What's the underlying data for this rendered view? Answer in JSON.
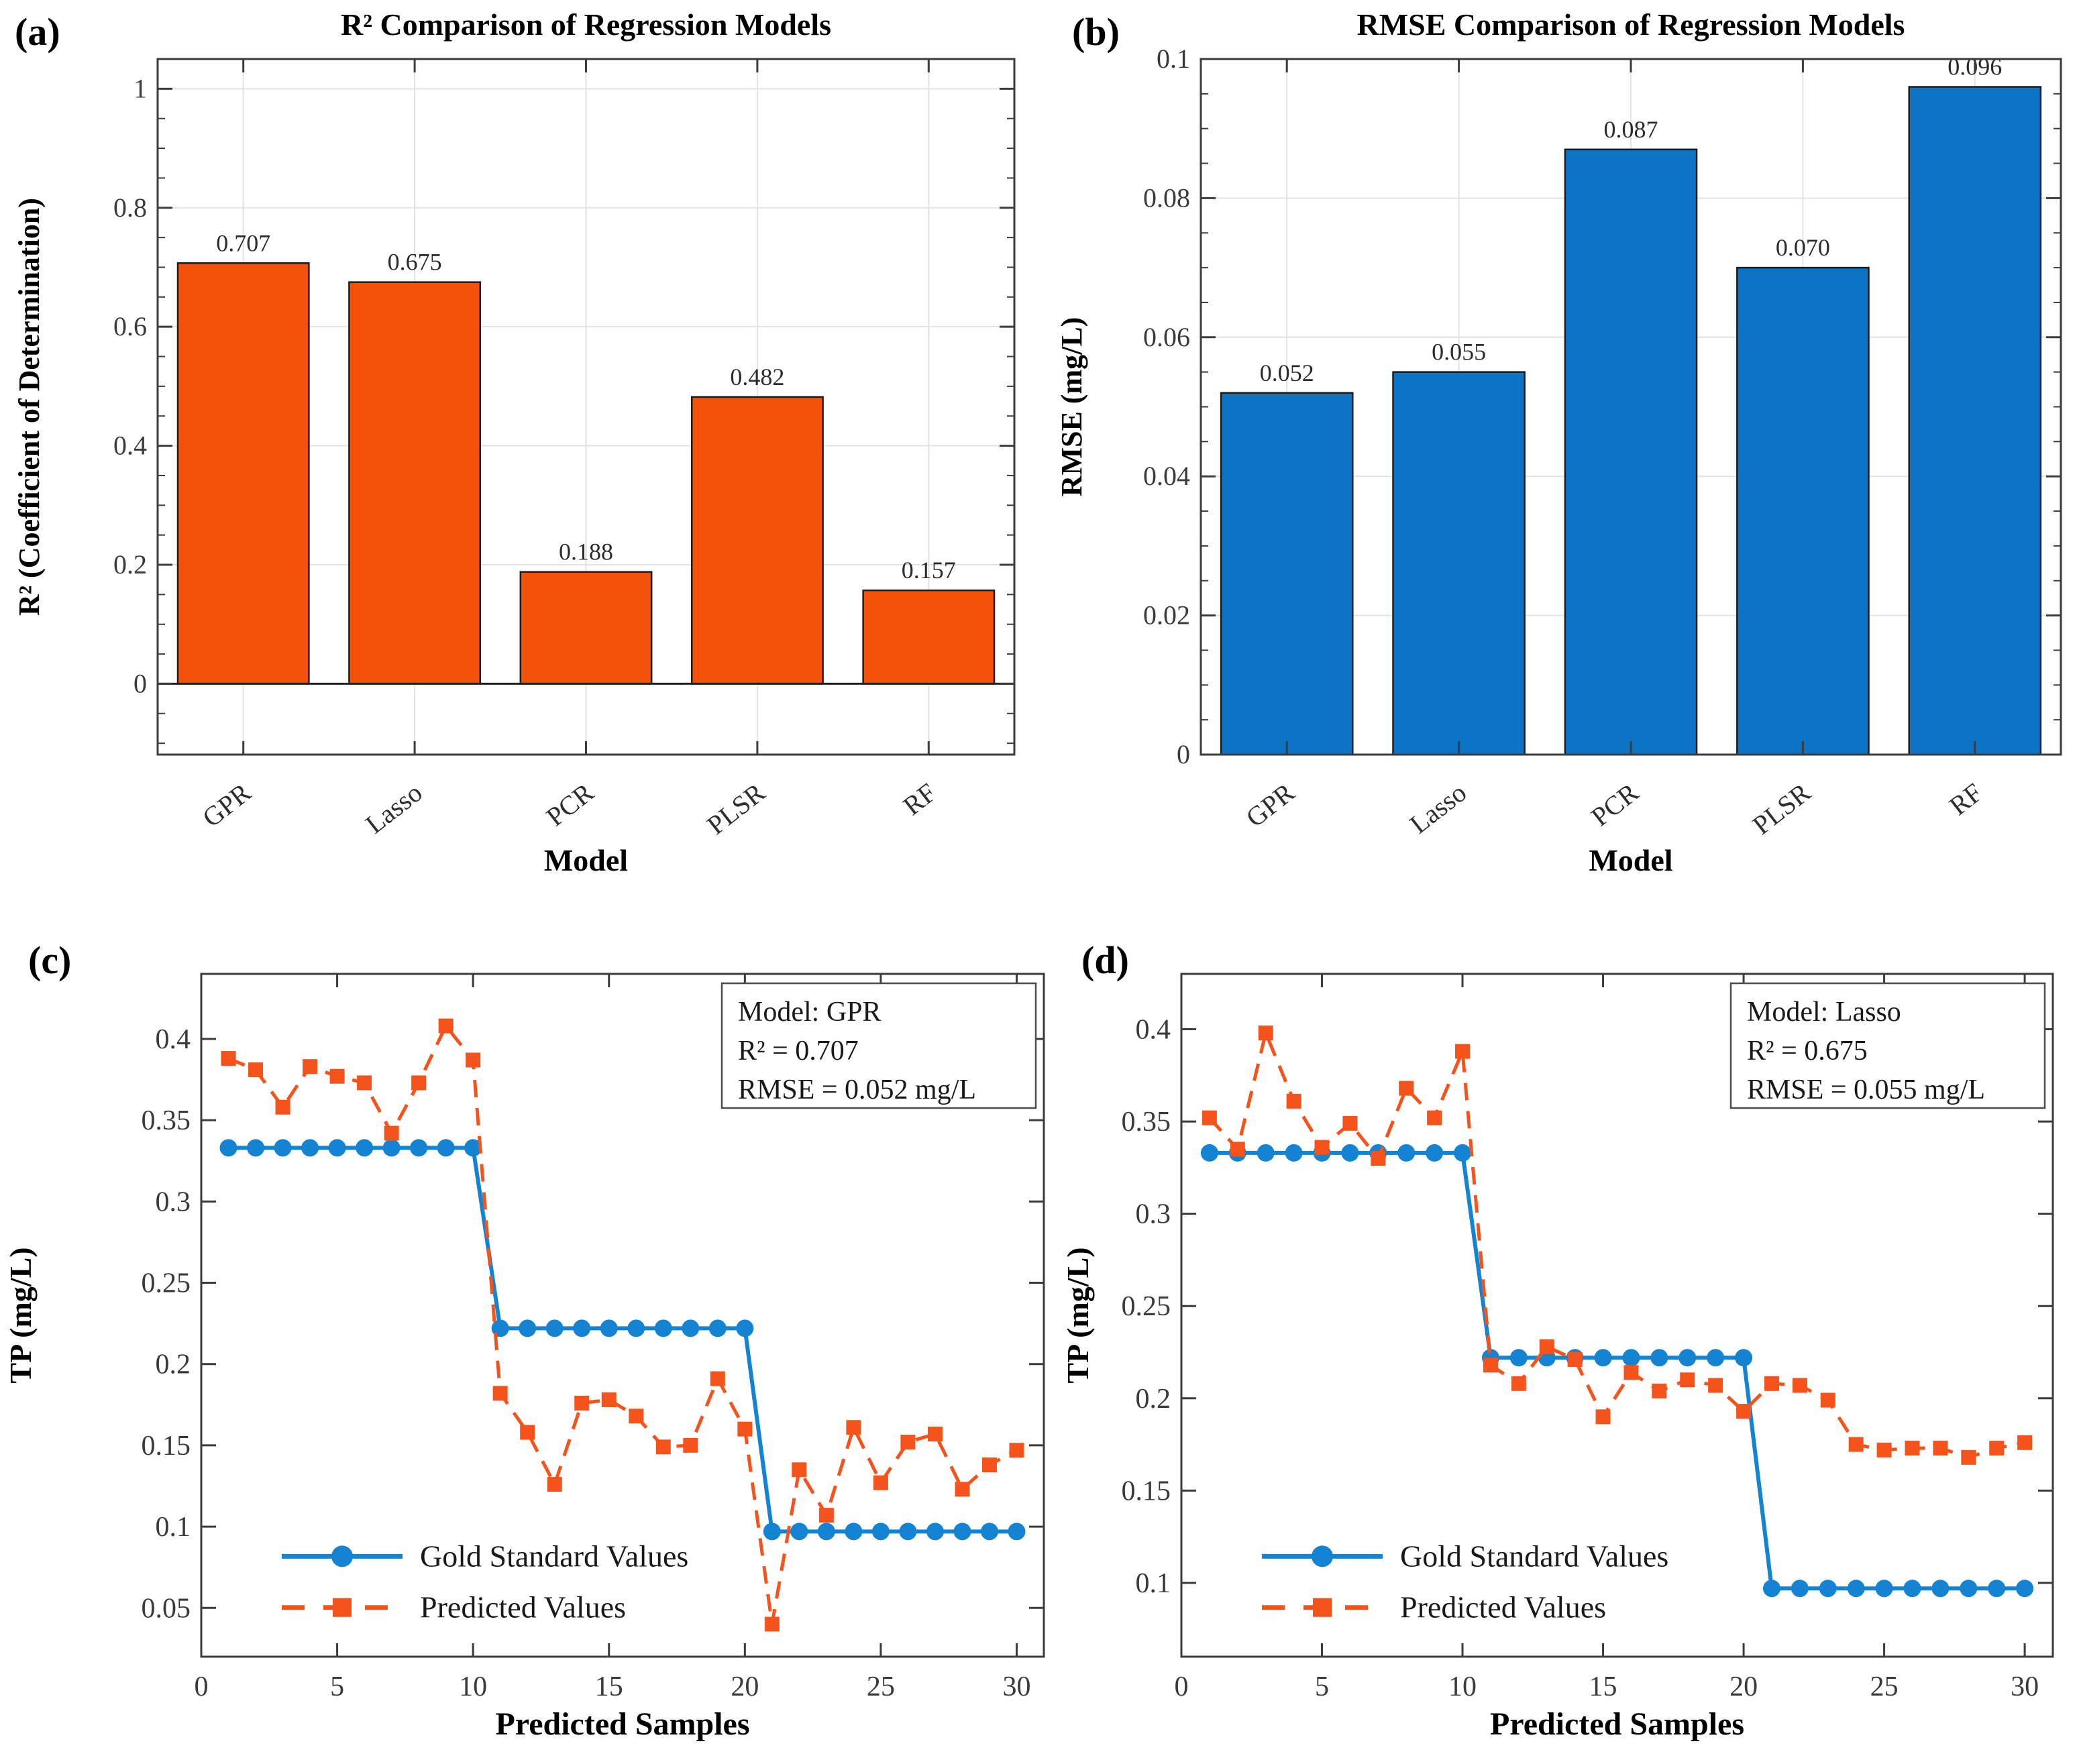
{
  "figure": {
    "panels": [
      {
        "tag": "(a)"
      },
      {
        "tag": "(b)"
      },
      {
        "tag": "(c)"
      },
      {
        "tag": "(d)"
      }
    ]
  },
  "colors": {
    "orange": "#f4520a",
    "blue_bar": "#0b74c4",
    "blue_line": "#1484d2",
    "orange_line": "#f4531c",
    "grid": "#e3e3e3",
    "spine": "#3c3c3c",
    "tick_text": "#3a3a3a",
    "label_text": "#000000",
    "value_label": "#2b2b2b"
  },
  "chart_data": [
    {
      "id": "a",
      "type": "bar",
      "title": "R² Comparison of Regression Models",
      "xlabel": "Model",
      "ylabel": "R² (Coefficient of Determination)",
      "categories": [
        "GPR",
        "Lasso",
        "PCR",
        "PLSR",
        "RF"
      ],
      "values": [
        0.707,
        0.675,
        0.188,
        0.482,
        0.157
      ],
      "value_labels": [
        "0.707",
        "0.675",
        "0.188",
        "0.482",
        "0.157"
      ],
      "bar_color": "#f4520a",
      "bar_edge": "#1c1c1c",
      "ylim": [
        -0.119,
        1.05
      ],
      "yticks": [
        0,
        0.2,
        0.4,
        0.6,
        0.8,
        1
      ],
      "minor_step": 0.05,
      "grid": true,
      "baseline_at_zero": true
    },
    {
      "id": "b",
      "type": "bar",
      "title": "RMSE Comparison of Regression Models",
      "xlabel": "Model",
      "ylabel": "RMSE (mg/L)",
      "categories": [
        "GPR",
        "Lasso",
        "PCR",
        "PLSR",
        "RF"
      ],
      "values": [
        0.052,
        0.055,
        0.087,
        0.07,
        0.096
      ],
      "value_labels": [
        "0.052",
        "0.055",
        "0.087",
        "0.070",
        "0.096"
      ],
      "bar_color": "#0b74c4",
      "bar_edge": "#1c1c1c",
      "ylim": [
        0,
        0.1
      ],
      "yticks": [
        0,
        0.02,
        0.04,
        0.06,
        0.08,
        0.1
      ],
      "minor_step": 0.005,
      "grid": true,
      "baseline_at_zero": false
    },
    {
      "id": "c",
      "type": "line",
      "xlabel": "Predicted Samples",
      "ylabel": "TP (mg/L)",
      "xlim": [
        0,
        31
      ],
      "xticks": [
        0,
        5,
        10,
        15,
        20,
        25,
        30
      ],
      "ylim": [
        0.02,
        0.44
      ],
      "yticks": [
        0.05,
        0.1,
        0.15,
        0.2,
        0.25,
        0.3,
        0.35,
        0.4
      ],
      "grid": false,
      "annotation": [
        "Model: GPR",
        "R² = 0.707",
        "RMSE = 0.052 mg/L"
      ],
      "legend": [
        "Gold Standard Values",
        "Predicted Values"
      ],
      "x": [
        1,
        2,
        3,
        4,
        5,
        6,
        7,
        8,
        9,
        10,
        11,
        12,
        13,
        14,
        15,
        16,
        17,
        18,
        19,
        20,
        21,
        22,
        23,
        24,
        25,
        26,
        27,
        28,
        29,
        30
      ],
      "series": [
        {
          "name": "Gold Standard Values",
          "style": "solid",
          "marker": "circle",
          "color": "#1484d2",
          "values": [
            0.333,
            0.333,
            0.333,
            0.333,
            0.333,
            0.333,
            0.333,
            0.333,
            0.333,
            0.333,
            0.222,
            0.222,
            0.222,
            0.222,
            0.222,
            0.222,
            0.222,
            0.222,
            0.222,
            0.222,
            0.097,
            0.097,
            0.097,
            0.097,
            0.097,
            0.097,
            0.097,
            0.097,
            0.097,
            0.097
          ]
        },
        {
          "name": "Predicted Values",
          "style": "dashed",
          "marker": "square",
          "color": "#f4531c",
          "values": [
            0.388,
            0.381,
            0.358,
            0.383,
            0.377,
            0.373,
            0.342,
            0.373,
            0.408,
            0.387,
            0.182,
            0.158,
            0.126,
            0.176,
            0.178,
            0.168,
            0.149,
            0.15,
            0.191,
            0.16,
            0.04,
            0.135,
            0.107,
            0.161,
            0.127,
            0.152,
            0.157,
            0.123,
            0.138,
            0.147
          ]
        }
      ]
    },
    {
      "id": "d",
      "type": "line",
      "xlabel": "Predicted Samples",
      "ylabel": "TP (mg/L)",
      "xlim": [
        0,
        31
      ],
      "xticks": [
        0,
        5,
        10,
        15,
        20,
        25,
        30
      ],
      "ylim": [
        0.06,
        0.43
      ],
      "yticks": [
        0.1,
        0.15,
        0.2,
        0.25,
        0.3,
        0.35,
        0.4
      ],
      "grid": false,
      "annotation": [
        "Model: Lasso",
        "R² = 0.675",
        "RMSE = 0.055 mg/L"
      ],
      "legend": [
        "Gold Standard Values",
        "Predicted Values"
      ],
      "x": [
        1,
        2,
        3,
        4,
        5,
        6,
        7,
        8,
        9,
        10,
        11,
        12,
        13,
        14,
        15,
        16,
        17,
        18,
        19,
        20,
        21,
        22,
        23,
        24,
        25,
        26,
        27,
        28,
        29,
        30
      ],
      "series": [
        {
          "name": "Gold Standard Values",
          "style": "solid",
          "marker": "circle",
          "color": "#1484d2",
          "values": [
            0.333,
            0.333,
            0.333,
            0.333,
            0.333,
            0.333,
            0.333,
            0.333,
            0.333,
            0.333,
            0.222,
            0.222,
            0.222,
            0.222,
            0.222,
            0.222,
            0.222,
            0.222,
            0.222,
            0.222,
            0.097,
            0.097,
            0.097,
            0.097,
            0.097,
            0.097,
            0.097,
            0.097,
            0.097,
            0.097
          ]
        },
        {
          "name": "Predicted Values",
          "style": "dashed",
          "marker": "square",
          "color": "#f4531c",
          "values": [
            0.352,
            0.335,
            0.398,
            0.361,
            0.336,
            0.349,
            0.33,
            0.368,
            0.352,
            0.388,
            0.218,
            0.208,
            0.228,
            0.221,
            0.19,
            0.214,
            0.204,
            0.21,
            0.207,
            0.193,
            0.208,
            0.207,
            0.199,
            0.175,
            0.172,
            0.173,
            0.173,
            0.168,
            0.173,
            0.176
          ]
        }
      ]
    }
  ]
}
